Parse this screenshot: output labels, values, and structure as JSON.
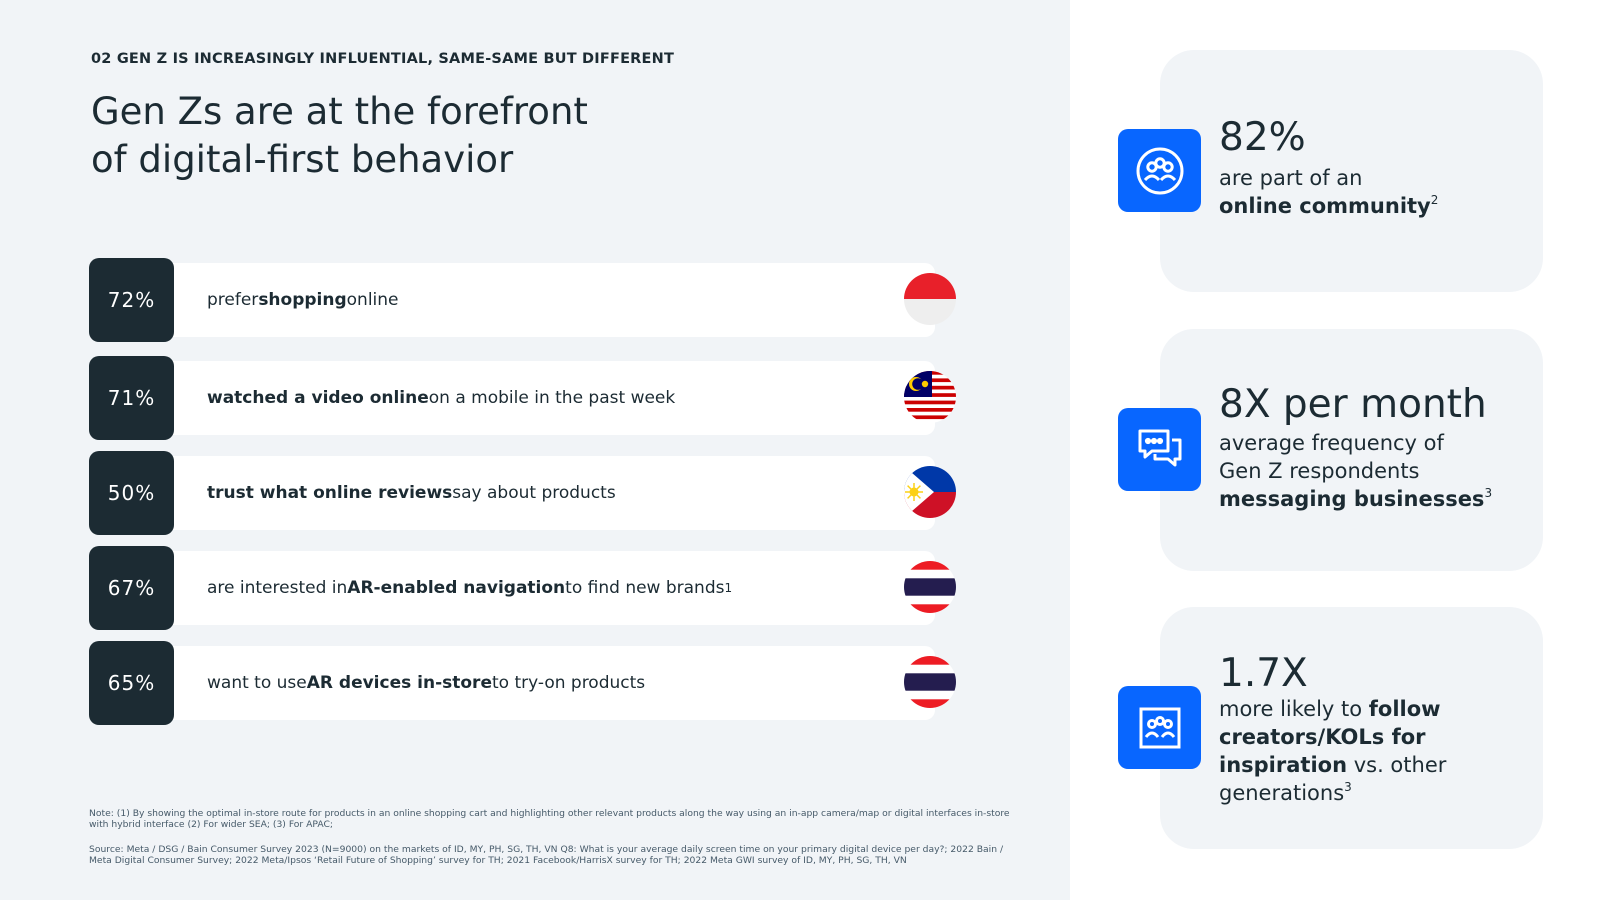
{
  "header": {
    "eyebrow": "02 GEN Z IS INCREASINGLY INFLUENTIAL, SAME-SAME BUT DIFFERENT",
    "title_line1": "Gen Zs are at the forefront",
    "title_line2": "of digital-first behavior"
  },
  "stats": [
    {
      "value": "72%",
      "text_before": "prefer ",
      "text_bold": "shopping",
      "text_after": " online",
      "sup": "",
      "flag": "indonesia-flag-icon"
    },
    {
      "value": "71%",
      "text_before": "",
      "text_bold": "watched a video online",
      "text_after": " on a mobile in the past week",
      "sup": "",
      "flag": "malaysia-flag-icon"
    },
    {
      "value": "50%",
      "text_before": "",
      "text_bold": "trust what online reviews",
      "text_after": " say about products",
      "sup": "",
      "flag": "philippines-flag-icon"
    },
    {
      "value": "67%",
      "text_before": "are interested in ",
      "text_bold": "AR-enabled navigation",
      "text_after": " to find new brands",
      "sup": "1",
      "flag": "thailand-flag-icon"
    },
    {
      "value": "65%",
      "text_before": "want to use ",
      "text_bold": "AR devices in-store",
      "text_after": " to try-on products",
      "sup": "",
      "flag": "thailand-flag-icon"
    }
  ],
  "notes": {
    "note": "Note: (1) By showing the optimal in-store route for products in an online shopping cart and highlighting other relevant products along the way using an in-app camera/map or digital interfaces in-store with hybrid interface (2) For wider SEA; (3) For APAC;",
    "source": "Source: Meta / DSG / Bain Consumer Survey 2023 (N=9000) on the markets of ID, MY, PH, SG, TH, VN Q8: What is your average daily screen time on your primary digital device per day?; 2022 Bain / Meta Digital Consumer Survey; 2022 Meta/Ipsos ‘Retail Future of Shopping’ survey for TH; 2021 Facebook/HarrisX survey for TH; 2022 Meta GWI survey of ID, MY, PH, SG, TH, VN"
  },
  "cards": [
    {
      "big": "82%",
      "line1": "are part of an",
      "bold": "online community",
      "sup": "2",
      "icon": "community-icon"
    },
    {
      "big": "8X per month",
      "line1": "average frequency of",
      "line2": "Gen Z respondents",
      "bold": "messaging businesses",
      "sup": "3",
      "icon": "chat-bubbles-icon"
    },
    {
      "big": "1.7X",
      "line1": "more likely to ",
      "bold1": "follow",
      "bold2": "creators/KOLs for",
      "bold3": "inspiration",
      "after": " vs. other",
      "last": "generations",
      "sup": "3",
      "icon": "creators-icon"
    }
  ],
  "colors": {
    "dark": "#1c2b33",
    "accent_blue": "#0866ff",
    "panel_bg": "#f1f4f7"
  }
}
